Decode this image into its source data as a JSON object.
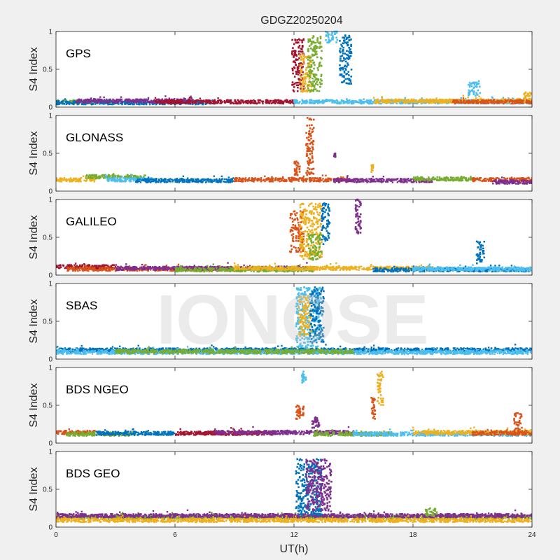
{
  "chart_data": {
    "type": "scatter",
    "title": "GDGZ20250204",
    "xlabel": "UT(h)",
    "ylabel": "S4 Index",
    "xlim": [
      0,
      24
    ],
    "ylim": [
      0,
      1
    ],
    "xticks": [
      "0",
      "6",
      "12",
      "18",
      "24"
    ],
    "yticks": [
      "0",
      "0.5",
      "1"
    ],
    "watermark": "IONOSE",
    "colors": [
      "#0072BD",
      "#D95319",
      "#EDB120",
      "#7E2F8E",
      "#77AC30",
      "#4DBEEE",
      "#A2142F"
    ],
    "panels": [
      {
        "label": "GPS",
        "baseline": [
          {
            "color": "#77AC30",
            "from": 0,
            "to": 3,
            "level": 0.07
          },
          {
            "color": "#0072BD",
            "from": 0,
            "to": 8,
            "level": 0.06
          },
          {
            "color": "#7E2F8E",
            "from": 1,
            "to": 7,
            "level": 0.08
          },
          {
            "color": "#A2142F",
            "from": 5,
            "to": 12,
            "level": 0.07
          },
          {
            "color": "#4DBEEE",
            "from": 12,
            "to": 24,
            "level": 0.07
          },
          {
            "color": "#EDB120",
            "from": 16,
            "to": 24,
            "level": 0.08
          },
          {
            "color": "#D95319",
            "from": 20,
            "to": 24,
            "level": 0.07
          }
        ],
        "bursts": [
          {
            "color": "#A2142F",
            "x": [
              11.9,
              12.5
            ],
            "y": [
              0.2,
              0.9
            ]
          },
          {
            "color": "#EDB120",
            "x": [
              12.3,
              12.9
            ],
            "y": [
              0.2,
              0.7
            ]
          },
          {
            "color": "#77AC30",
            "x": [
              12.7,
              13.4
            ],
            "y": [
              0.2,
              0.95
            ]
          },
          {
            "color": "#4DBEEE",
            "x": [
              13.6,
              14.2
            ],
            "y": [
              0.85,
              1.0
            ]
          },
          {
            "color": "#0072BD",
            "x": [
              14.3,
              14.9
            ],
            "y": [
              0.3,
              0.95
            ]
          },
          {
            "color": "#4DBEEE",
            "x": [
              20.8,
              21.4
            ],
            "y": [
              0.15,
              0.35
            ]
          },
          {
            "color": "#EDB120",
            "x": [
              23.6,
              24
            ],
            "y": [
              0.1,
              0.2
            ]
          }
        ]
      },
      {
        "label": "GLONASS",
        "baseline": [
          {
            "color": "#EDB120",
            "from": 0,
            "to": 2,
            "level": 0.15
          },
          {
            "color": "#77AC30",
            "from": 1.5,
            "to": 4.5,
            "level": 0.19
          },
          {
            "color": "#4DBEEE",
            "from": 2.5,
            "to": 5,
            "level": 0.15
          },
          {
            "color": "#0072BD",
            "from": 4,
            "to": 9,
            "level": 0.14
          },
          {
            "color": "#D95319",
            "from": 9,
            "to": 15,
            "level": 0.15
          },
          {
            "color": "#7E2F8E",
            "from": 14,
            "to": 19,
            "level": 0.14
          },
          {
            "color": "#77AC30",
            "from": 18,
            "to": 21,
            "level": 0.16
          },
          {
            "color": "#D95319",
            "from": 21,
            "to": 24,
            "level": 0.15
          },
          {
            "color": "#7E2F8E",
            "from": 22,
            "to": 24,
            "level": 0.12
          }
        ],
        "bursts": [
          {
            "color": "#D95319",
            "x": [
              12.0,
              12.3
            ],
            "y": [
              0.2,
              0.4
            ]
          },
          {
            "color": "#D95319",
            "x": [
              12.6,
              13.0
            ],
            "y": [
              0.2,
              1.0
            ]
          },
          {
            "color": "#7E2F8E",
            "x": [
              14.0,
              14.1
            ],
            "y": [
              0.45,
              0.5
            ]
          },
          {
            "color": "#EDB120",
            "x": [
              15.9,
              16.0
            ],
            "y": [
              0.25,
              0.35
            ]
          }
        ]
      },
      {
        "label": "GALILEO",
        "baseline": [
          {
            "color": "#A2142F",
            "from": 0,
            "to": 3,
            "level": 0.11
          },
          {
            "color": "#D95319",
            "from": 0.5,
            "to": 9,
            "level": 0.08
          },
          {
            "color": "#7E2F8E",
            "from": 3,
            "to": 13,
            "level": 0.09
          },
          {
            "color": "#77AC30",
            "from": 6,
            "to": 13,
            "level": 0.07
          },
          {
            "color": "#EDB120",
            "from": 9,
            "to": 19,
            "level": 0.09
          },
          {
            "color": "#0072BD",
            "from": 16,
            "to": 24,
            "level": 0.07
          },
          {
            "color": "#4DBEEE",
            "from": 18,
            "to": 24,
            "level": 0.08
          }
        ],
        "bursts": [
          {
            "color": "#D95319",
            "x": [
              11.8,
              12.5
            ],
            "y": [
              0.3,
              0.85
            ]
          },
          {
            "color": "#EDB120",
            "x": [
              12.3,
              13.4
            ],
            "y": [
              0.2,
              0.95
            ]
          },
          {
            "color": "#77AC30",
            "x": [
              12.7,
              13.4
            ],
            "y": [
              0.2,
              0.55
            ]
          },
          {
            "color": "#0072BD",
            "x": [
              13.4,
              13.8
            ],
            "y": [
              0.4,
              0.95
            ]
          },
          {
            "color": "#7E2F8E",
            "x": [
              15.1,
              15.4
            ],
            "y": [
              0.55,
              1.0
            ]
          },
          {
            "color": "#0072BD",
            "x": [
              21.2,
              21.6
            ],
            "y": [
              0.15,
              0.45
            ]
          }
        ]
      },
      {
        "label": "SBAS",
        "baseline": [
          {
            "color": "#0072BD",
            "from": 0,
            "to": 24,
            "level": 0.12
          },
          {
            "color": "#4DBEEE",
            "from": 0,
            "to": 24,
            "level": 0.09
          },
          {
            "color": "#77AC30",
            "from": 3,
            "to": 15,
            "level": 0.1
          }
        ],
        "bursts": [
          {
            "color": "#4DBEEE",
            "x": [
              12.1,
              13.4
            ],
            "y": [
              0.15,
              0.95
            ]
          },
          {
            "color": "#EDB120",
            "x": [
              12.2,
              12.9
            ],
            "y": [
              0.3,
              0.85
            ]
          },
          {
            "color": "#0072BD",
            "x": [
              12.8,
              13.5
            ],
            "y": [
              0.2,
              0.95
            ]
          }
        ]
      },
      {
        "label": "BDS NGEO",
        "baseline": [
          {
            "color": "#D95319",
            "from": 0,
            "to": 2,
            "level": 0.14
          },
          {
            "color": "#77AC30",
            "from": 0.5,
            "to": 4,
            "level": 0.12
          },
          {
            "color": "#0072BD",
            "from": 2,
            "to": 6,
            "level": 0.13
          },
          {
            "color": "#A2142F",
            "from": 6,
            "to": 11,
            "level": 0.13
          },
          {
            "color": "#7E2F8E",
            "from": 8,
            "to": 15,
            "level": 0.14
          },
          {
            "color": "#77AC30",
            "from": 13,
            "to": 17,
            "level": 0.12
          },
          {
            "color": "#4DBEEE",
            "from": 15,
            "to": 24,
            "level": 0.12
          },
          {
            "color": "#EDB120",
            "from": 18,
            "to": 24,
            "level": 0.14
          },
          {
            "color": "#D95319",
            "from": 21,
            "to": 24,
            "level": 0.13
          }
        ],
        "bursts": [
          {
            "color": "#D95319",
            "x": [
              12.1,
              12.5
            ],
            "y": [
              0.3,
              0.5
            ]
          },
          {
            "color": "#4DBEEE",
            "x": [
              12.4,
              12.6
            ],
            "y": [
              0.8,
              0.95
            ]
          },
          {
            "color": "#7E2F8E",
            "x": [
              12.9,
              13.3
            ],
            "y": [
              0.2,
              0.35
            ]
          },
          {
            "color": "#D95319",
            "x": [
              15.9,
              16.1
            ],
            "y": [
              0.3,
              0.6
            ]
          },
          {
            "color": "#EDB120",
            "x": [
              16.2,
              16.5
            ],
            "y": [
              0.5,
              0.95
            ]
          },
          {
            "color": "#D95319",
            "x": [
              23.1,
              23.5
            ],
            "y": [
              0.15,
              0.4
            ]
          }
        ]
      },
      {
        "label": "BDS GEO",
        "baseline": [
          {
            "color": "#77AC30",
            "from": 0,
            "to": 24,
            "level": 0.13
          },
          {
            "color": "#7E2F8E",
            "from": 0,
            "to": 24,
            "level": 0.15
          },
          {
            "color": "#EDB120",
            "from": 0,
            "to": 24,
            "level": 0.09
          }
        ],
        "bursts": [
          {
            "color": "#0072BD",
            "x": [
              12.1,
              13.4
            ],
            "y": [
              0.15,
              0.9
            ]
          },
          {
            "color": "#7E2F8E",
            "x": [
              12.6,
              13.9
            ],
            "y": [
              0.2,
              0.9
            ]
          },
          {
            "color": "#77AC30",
            "x": [
              18.6,
              19.2
            ],
            "y": [
              0.15,
              0.25
            ]
          }
        ]
      }
    ]
  }
}
